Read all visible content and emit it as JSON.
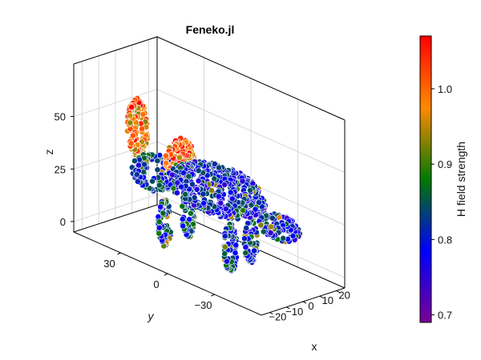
{
  "chart_data": {
    "type": "scatter",
    "title": "Feneko.jl",
    "xlabel": "x",
    "ylabel": "y",
    "zlabel": "z",
    "xlim": [
      -25,
      25
    ],
    "ylim": [
      -60,
      60
    ],
    "zlim": [
      -5,
      75
    ],
    "x_ticks": [
      -20,
      -10,
      0,
      10,
      20
    ],
    "x_tick_labels": [
      "−20",
      "−10",
      "0",
      "10",
      "20"
    ],
    "y_ticks": [
      30,
      0,
      -30
    ],
    "y_tick_labels": [
      "30",
      "0",
      "−30"
    ],
    "z_ticks": [
      0,
      25,
      50
    ],
    "z_tick_labels": [
      "0",
      "25",
      "50"
    ],
    "grid": true,
    "colormap": [
      "#7a0095",
      "#0000ff",
      "#007a00",
      "#ff8a00",
      "#ff0000"
    ],
    "colorbar": {
      "label": "H field strength",
      "range": [
        0.69,
        1.07
      ],
      "ticks": [
        0.7,
        0.8,
        0.9,
        1.0
      ],
      "tick_labels": [
        "0.7",
        "0.8",
        "0.9",
        "1.0"
      ]
    },
    "point_cloud_parts": [
      {
        "name": "body",
        "center": [
          0,
          -5,
          30
        ],
        "radius": [
          14,
          28,
          10
        ],
        "h_mean": 0.8
      },
      {
        "name": "head",
        "center": [
          0,
          35,
          25
        ],
        "radius": [
          9,
          12,
          8
        ],
        "h_mean": 0.82
      },
      {
        "name": "horn",
        "center": [
          2,
          48,
          42
        ],
        "radius": [
          3,
          6,
          14
        ],
        "h_mean": 0.98
      },
      {
        "name": "frill",
        "center": [
          3,
          22,
          35
        ],
        "radius": [
          8,
          4,
          10
        ],
        "h_mean": 1.0
      },
      {
        "name": "tail",
        "center": [
          0,
          -45,
          25
        ],
        "radius": [
          6,
          12,
          6
        ],
        "h_mean": 0.8
      },
      {
        "name": "front-left-leg",
        "center": [
          -8,
          20,
          8
        ],
        "radius": [
          3,
          3,
          12
        ],
        "h_mean": 0.82
      },
      {
        "name": "front-right-leg",
        "center": [
          8,
          22,
          8
        ],
        "radius": [
          3,
          3,
          12
        ],
        "h_mean": 0.82
      },
      {
        "name": "rear-left-leg",
        "center": [
          -8,
          -22,
          10
        ],
        "radius": [
          3,
          3,
          12
        ],
        "h_mean": 0.82
      },
      {
        "name": "rear-right-leg",
        "center": [
          8,
          -18,
          8
        ],
        "radius": [
          3,
          3,
          12
        ],
        "h_mean": 0.82
      }
    ]
  }
}
